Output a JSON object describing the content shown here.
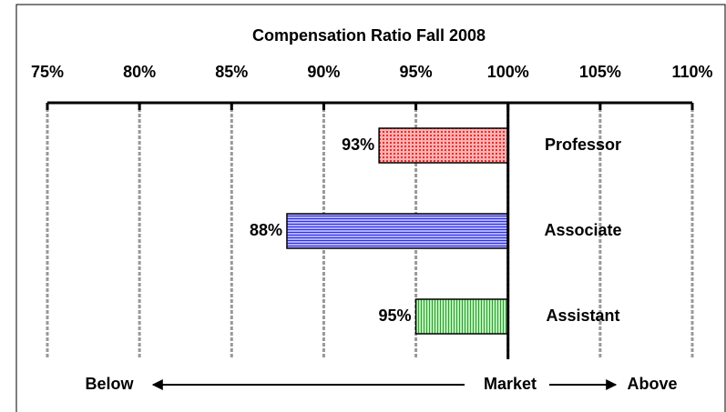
{
  "chart_data": {
    "type": "hbar",
    "title": "Compensation Ratio Fall 2008",
    "categories": [
      "Professor",
      "Associate",
      "Assistant"
    ],
    "values": [
      93,
      88,
      95
    ],
    "value_labels": [
      "93%",
      "88%",
      "95%"
    ],
    "colors": [
      "#ff9a9a",
      "#9a9aff",
      "#9ae09a"
    ],
    "xlim": [
      75,
      110
    ],
    "xticks": [
      {
        "value": 75,
        "label": "75%"
      },
      {
        "value": 80,
        "label": "80%"
      },
      {
        "value": 85,
        "label": "85%"
      },
      {
        "value": 90,
        "label": "90%"
      },
      {
        "value": 95,
        "label": "95%"
      },
      {
        "value": 100,
        "label": "100%"
      },
      {
        "value": 105,
        "label": "105%"
      },
      {
        "value": 110,
        "label": "110%"
      }
    ],
    "reference_line": 100,
    "grid": true,
    "annotations": [
      "Below",
      "Market",
      "Above"
    ]
  }
}
